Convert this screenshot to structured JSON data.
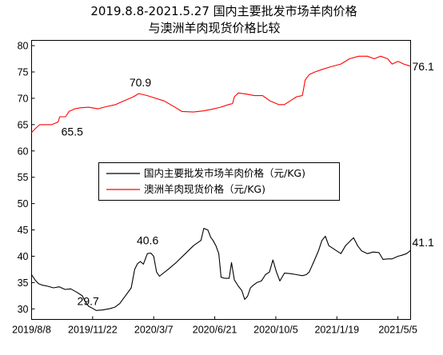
{
  "chart_data": {
    "type": "line",
    "title": "2019.8.8-2021.5.27 国内主要批发市场羊肉价格",
    "subtitle": "与澳洲羊肉现货价格比较",
    "ylim": [
      28,
      81
    ],
    "yticks": [
      30,
      35,
      40,
      45,
      50,
      55,
      60,
      65,
      70,
      75,
      80
    ],
    "xlim": [
      "2019-08-08",
      "2021-05-27"
    ],
    "xticks": [
      {
        "date": "2019-08-08",
        "label": "2019/8/8"
      },
      {
        "date": "2019-11-22",
        "label": "2019/11/22"
      },
      {
        "date": "2020-03-07",
        "label": "2020/3/7"
      },
      {
        "date": "2020-06-21",
        "label": "2020/6/21"
      },
      {
        "date": "2020-10-05",
        "label": "2020/10/5"
      },
      {
        "date": "2021-01-19",
        "label": "2021/1/19"
      },
      {
        "date": "2021-05-05",
        "label": "2021/5/5"
      }
    ],
    "legend_position": "center",
    "series": [
      {
        "name": "国内主要批发市场羊肉价格（元/KG)",
        "color": "#000000",
        "points": [
          [
            "2019-08-08",
            36.5
          ],
          [
            "2019-08-14",
            35.5
          ],
          [
            "2019-08-20",
            34.8
          ],
          [
            "2019-08-27",
            34.5
          ],
          [
            "2019-09-05",
            34.3
          ],
          [
            "2019-09-15",
            34.0
          ],
          [
            "2019-09-25",
            34.2
          ],
          [
            "2019-10-05",
            33.7
          ],
          [
            "2019-10-15",
            33.8
          ],
          [
            "2019-10-25",
            33.2
          ],
          [
            "2019-11-04",
            32.5
          ],
          [
            "2019-11-10",
            31.2
          ],
          [
            "2019-11-15",
            30.5
          ],
          [
            "2019-11-22",
            30.1
          ],
          [
            "2019-11-28",
            29.7
          ],
          [
            "2019-12-10",
            29.8
          ],
          [
            "2019-12-20",
            30.0
          ],
          [
            "2019-12-30",
            30.3
          ],
          [
            "2020-01-08",
            31.0
          ],
          [
            "2020-01-18",
            32.5
          ],
          [
            "2020-01-28",
            34.0
          ],
          [
            "2020-02-03",
            37.5
          ],
          [
            "2020-02-08",
            38.6
          ],
          [
            "2020-02-13",
            39.0
          ],
          [
            "2020-02-18",
            38.5
          ],
          [
            "2020-02-25",
            40.5
          ],
          [
            "2020-03-02",
            40.6
          ],
          [
            "2020-03-07",
            40.0
          ],
          [
            "2020-03-12",
            37.0
          ],
          [
            "2020-03-17",
            36.2
          ],
          [
            "2020-04-01",
            37.5
          ],
          [
            "2020-04-15",
            38.8
          ],
          [
            "2020-05-01",
            40.5
          ],
          [
            "2020-05-15",
            42.0
          ],
          [
            "2020-05-28",
            43.0
          ],
          [
            "2020-06-02",
            45.3
          ],
          [
            "2020-06-09",
            45.0
          ],
          [
            "2020-06-14",
            43.6
          ],
          [
            "2020-06-18",
            43.0
          ],
          [
            "2020-06-23",
            42.0
          ],
          [
            "2020-06-28",
            40.5
          ],
          [
            "2020-07-02",
            36.0
          ],
          [
            "2020-07-09",
            35.8
          ],
          [
            "2020-07-16",
            35.8
          ],
          [
            "2020-07-20",
            38.8
          ],
          [
            "2020-07-25",
            35.5
          ],
          [
            "2020-08-01",
            34.3
          ],
          [
            "2020-08-07",
            33.5
          ],
          [
            "2020-08-12",
            31.8
          ],
          [
            "2020-08-17",
            32.4
          ],
          [
            "2020-08-22",
            34.0
          ],
          [
            "2020-08-27",
            34.5
          ],
          [
            "2020-09-02",
            35.0
          ],
          [
            "2020-09-10",
            35.3
          ],
          [
            "2020-09-17",
            36.5
          ],
          [
            "2020-09-24",
            37.0
          ],
          [
            "2020-09-30",
            39.3
          ],
          [
            "2020-10-06",
            37.0
          ],
          [
            "2020-10-12",
            35.3
          ],
          [
            "2020-10-20",
            36.8
          ],
          [
            "2020-10-30",
            36.7
          ],
          [
            "2020-11-10",
            36.5
          ],
          [
            "2020-11-20",
            36.3
          ],
          [
            "2020-11-27",
            36.5
          ],
          [
            "2020-12-02",
            37.0
          ],
          [
            "2020-12-10",
            39.0
          ],
          [
            "2020-12-18",
            41.0
          ],
          [
            "2020-12-24",
            43.0
          ],
          [
            "2020-12-30",
            43.8
          ],
          [
            "2021-01-05",
            42.0
          ],
          [
            "2021-01-12",
            41.5
          ],
          [
            "2021-01-19",
            41.0
          ],
          [
            "2021-01-26",
            40.5
          ],
          [
            "2021-02-03",
            42.0
          ],
          [
            "2021-02-12",
            43.0
          ],
          [
            "2021-02-17",
            43.5
          ],
          [
            "2021-02-24",
            42.0
          ],
          [
            "2021-03-03",
            41.0
          ],
          [
            "2021-03-13",
            40.5
          ],
          [
            "2021-03-23",
            40.8
          ],
          [
            "2021-04-02",
            40.7
          ],
          [
            "2021-04-09",
            39.4
          ],
          [
            "2021-04-17",
            39.5
          ],
          [
            "2021-04-25",
            39.5
          ],
          [
            "2021-05-05",
            40.0
          ],
          [
            "2021-05-12",
            40.2
          ],
          [
            "2021-05-20",
            40.5
          ],
          [
            "2021-05-27",
            41.1
          ]
        ]
      },
      {
        "name": "澳洲羊肉现货价格（元/KG)",
        "color": "#ff0000",
        "points": [
          [
            "2019-08-08",
            63.5
          ],
          [
            "2019-08-15",
            64.3
          ],
          [
            "2019-08-22",
            65.0
          ],
          [
            "2019-09-01",
            65.0
          ],
          [
            "2019-09-12",
            65.0
          ],
          [
            "2019-09-23",
            65.5
          ],
          [
            "2019-09-26",
            66.5
          ],
          [
            "2019-10-06",
            66.5
          ],
          [
            "2019-10-12",
            67.5
          ],
          [
            "2019-10-22",
            68.0
          ],
          [
            "2019-11-01",
            68.2
          ],
          [
            "2019-11-15",
            68.3
          ],
          [
            "2019-12-01",
            68.0
          ],
          [
            "2019-12-15",
            68.4
          ],
          [
            "2020-01-01",
            68.8
          ],
          [
            "2020-01-15",
            69.5
          ],
          [
            "2020-02-01",
            70.3
          ],
          [
            "2020-02-10",
            70.9
          ],
          [
            "2020-02-25",
            70.5
          ],
          [
            "2020-03-10",
            70.0
          ],
          [
            "2020-03-25",
            69.5
          ],
          [
            "2020-04-10",
            68.5
          ],
          [
            "2020-04-25",
            67.5
          ],
          [
            "2020-05-15",
            67.4
          ],
          [
            "2020-06-01",
            67.6
          ],
          [
            "2020-06-15",
            67.9
          ],
          [
            "2020-07-01",
            68.3
          ],
          [
            "2020-07-15",
            68.8
          ],
          [
            "2020-07-22",
            69.0
          ],
          [
            "2020-07-25",
            70.3
          ],
          [
            "2020-08-01",
            71.0
          ],
          [
            "2020-08-15",
            70.8
          ],
          [
            "2020-08-29",
            70.5
          ],
          [
            "2020-09-12",
            70.5
          ],
          [
            "2020-09-25",
            69.5
          ],
          [
            "2020-10-10",
            68.8
          ],
          [
            "2020-10-20",
            68.8
          ],
          [
            "2020-10-30",
            69.5
          ],
          [
            "2020-11-10",
            70.3
          ],
          [
            "2020-11-20",
            70.5
          ],
          [
            "2020-11-25",
            73.5
          ],
          [
            "2020-12-02",
            74.5
          ],
          [
            "2020-12-12",
            75.0
          ],
          [
            "2020-12-25",
            75.5
          ],
          [
            "2021-01-09",
            76.0
          ],
          [
            "2021-01-26",
            76.5
          ],
          [
            "2021-02-10",
            77.5
          ],
          [
            "2021-02-26",
            78.0
          ],
          [
            "2021-03-13",
            78.0
          ],
          [
            "2021-03-25",
            77.5
          ],
          [
            "2021-04-05",
            78.0
          ],
          [
            "2021-04-17",
            77.5
          ],
          [
            "2021-04-25",
            76.5
          ],
          [
            "2021-05-05",
            77.0
          ],
          [
            "2021-05-15",
            76.5
          ],
          [
            "2021-05-27",
            76.1
          ]
        ]
      }
    ],
    "annotations": [
      {
        "label": "65.5",
        "date": "2019-09-23",
        "value": 65.5
      },
      {
        "label": "70.9",
        "date": "2020-02-10",
        "value": 70.9
      },
      {
        "label": "76.1",
        "date": "2021-05-27",
        "value": 76.1
      },
      {
        "label": "29.7",
        "date": "2019-11-28",
        "value": 29.7
      },
      {
        "label": "40.6",
        "date": "2020-03-02",
        "value": 40.6
      },
      {
        "label": "41.1",
        "date": "2021-05-27",
        "value": 41.1
      }
    ]
  }
}
